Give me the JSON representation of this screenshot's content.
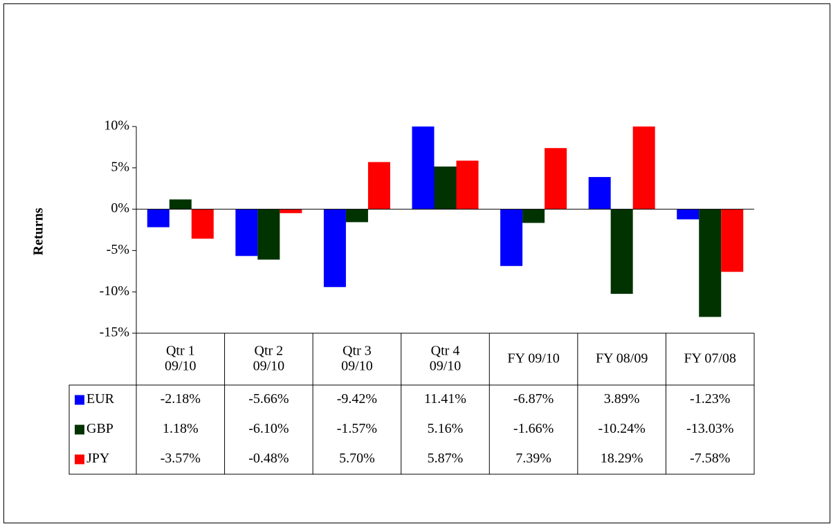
{
  "chart_data": {
    "type": "bar",
    "y_axis_label": "Returns",
    "categories": [
      "Qtr 1\n09/10",
      "Qtr 2\n09/10",
      "Qtr 3\n09/10",
      "Qtr 4\n09/10",
      "FY 09/10",
      "FY 08/09",
      "FY 07/08"
    ],
    "series": [
      {
        "name": "EUR",
        "color": "#0000ff",
        "values": [
          -2.18,
          -5.66,
          -9.42,
          11.41,
          -6.87,
          3.89,
          -1.23
        ],
        "value_labels": [
          "-2.18%",
          "-5.66%",
          "-9.42%",
          "11.41%",
          "-6.87%",
          "3.89%",
          "-1.23%"
        ]
      },
      {
        "name": "GBP",
        "color": "#003300",
        "values": [
          1.18,
          -6.1,
          -1.57,
          5.16,
          -1.66,
          -10.24,
          -13.03
        ],
        "value_labels": [
          "1.18%",
          "-6.10%",
          "-1.57%",
          "5.16%",
          "-1.66%",
          "-10.24%",
          "-13.03%"
        ]
      },
      {
        "name": "JPY",
        "color": "#ff0000",
        "values": [
          -3.57,
          -0.48,
          5.7,
          5.87,
          7.39,
          18.29,
          -7.58
        ],
        "value_labels": [
          "-3.57%",
          "-0.48%",
          "5.70%",
          "5.87%",
          "7.39%",
          "18.29%",
          "-7.58%"
        ]
      }
    ],
    "ylim": [
      -15,
      10
    ],
    "yticks": [
      {
        "value": -15,
        "label": "-15%"
      },
      {
        "value": -10,
        "label": "-10%"
      },
      {
        "value": -5,
        "label": "-5%"
      },
      {
        "value": 0,
        "label": "0%"
      },
      {
        "value": 5,
        "label": "5%"
      },
      {
        "value": 10,
        "label": "10%"
      }
    ],
    "grid": false
  }
}
